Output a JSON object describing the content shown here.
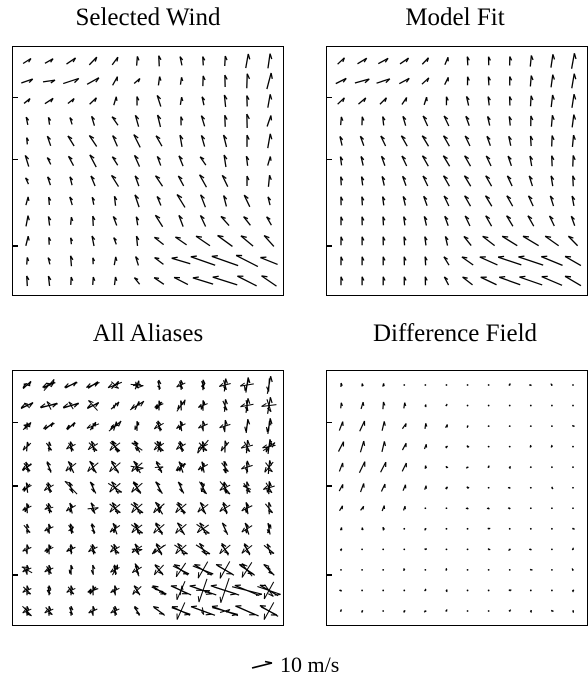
{
  "panels": {
    "selected": {
      "title": "Selected Wind",
      "field": "selected"
    },
    "model": {
      "title": "Model Fit",
      "field": "model"
    },
    "aliases": {
      "title": "All Aliases",
      "field": "aliases"
    },
    "difference": {
      "title": "Difference Field",
      "field": "difference"
    }
  },
  "legend": {
    "label": "10 m/s",
    "reference_speed_ms": 10
  },
  "colors": {
    "ink": "#000000",
    "background": "#ffffff"
  }
}
